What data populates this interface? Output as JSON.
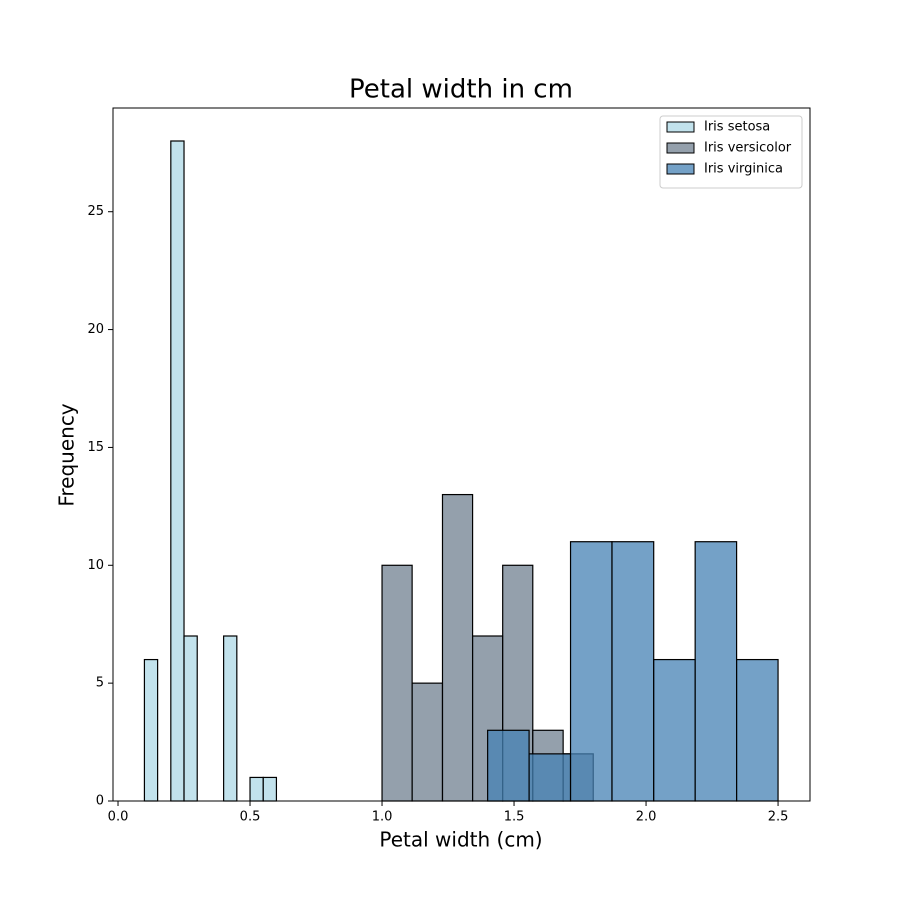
{
  "chart_data": {
    "type": "histogram",
    "title": "Petal width in cm",
    "x_label": "Petal width (cm)",
    "y_label": "Frequency",
    "series": [
      {
        "name": "Iris setosa",
        "color": "#add8e6",
        "bins": [
          0.1,
          0.15,
          0.2,
          0.25,
          0.3,
          0.35,
          0.4,
          0.45,
          0.5,
          0.55,
          0.6
        ],
        "values": [
          6,
          0,
          28,
          7,
          0,
          0,
          7,
          0,
          1,
          1
        ]
      },
      {
        "name": "Iris versicolor",
        "color": "#708090",
        "bins": [
          1.0,
          1.114,
          1.229,
          1.343,
          1.457,
          1.571,
          1.686,
          1.8
        ],
        "values": [
          10,
          5,
          13,
          7,
          10,
          3,
          2
        ]
      },
      {
        "name": "Iris virginica",
        "color": "#4682b4",
        "bins": [
          1.4,
          1.557,
          1.714,
          1.871,
          2.029,
          2.186,
          2.343,
          2.5
        ],
        "values": [
          3,
          2,
          11,
          11,
          6,
          11,
          6
        ]
      }
    ],
    "xlim": [
      -0.019,
      2.621
    ],
    "ylim": [
      0,
      29.4
    ],
    "xticks": [
      {
        "value": 0,
        "label": "0.0"
      },
      0.5,
      {
        "value": 1,
        "label": "1.0"
      },
      1.5,
      {
        "value": 2,
        "label": "2.0"
      },
      2.5
    ],
    "yticks": [
      0,
      5,
      10,
      15,
      20,
      25
    ],
    "legend": "upper right",
    "opacity": 0.75
  }
}
